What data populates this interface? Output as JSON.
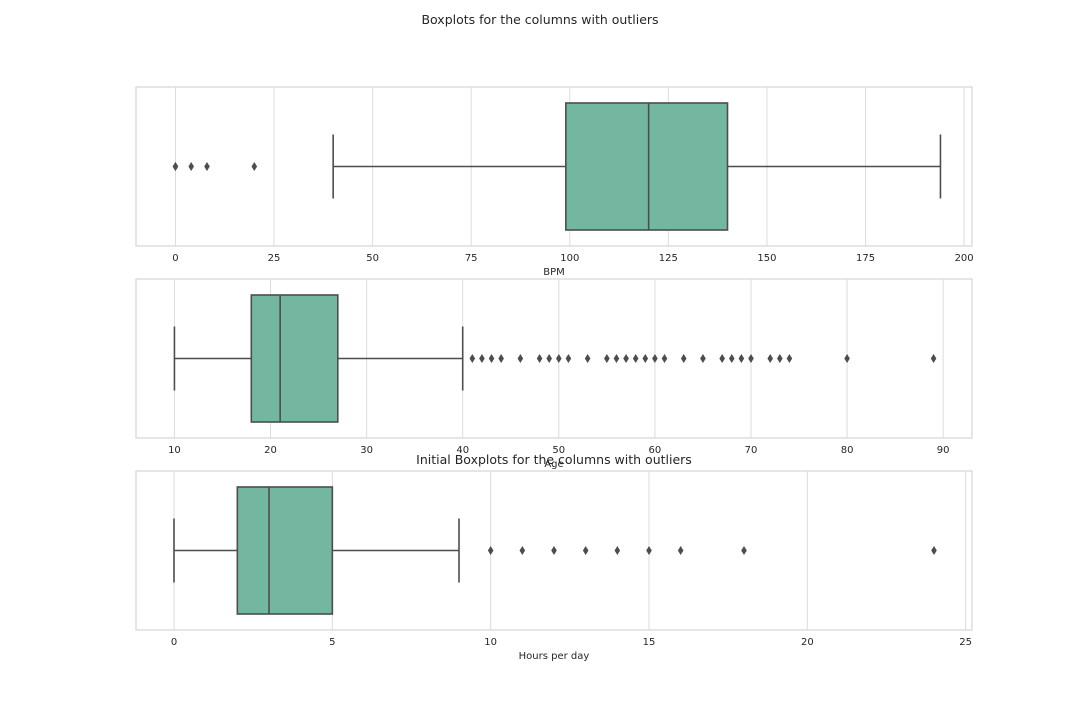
{
  "figure": {
    "title": "Boxplots for the columns with outliers",
    "box_color": "#74b7a1",
    "line_color": "#4d4d4d"
  },
  "chart_data": [
    {
      "type": "box",
      "orientation": "horizontal",
      "title": "",
      "xlabel": "BPM",
      "xlim": [
        -10,
        202
      ],
      "xticks": [
        0,
        25,
        50,
        75,
        100,
        125,
        150,
        175,
        200
      ],
      "grid": true,
      "whisker_low": 40,
      "q1": 99,
      "median": 120,
      "q3": 140,
      "whisker_high": 194,
      "outliers": [
        0,
        0,
        4,
        8,
        20
      ]
    },
    {
      "type": "box",
      "orientation": "horizontal",
      "title": "",
      "xlabel": "Age",
      "xlim": [
        6,
        93
      ],
      "xticks": [
        10,
        20,
        30,
        40,
        50,
        60,
        70,
        80,
        90
      ],
      "grid": true,
      "whisker_low": 10,
      "q1": 18,
      "median": 21,
      "q3": 27,
      "whisker_high": 40,
      "outliers": [
        41,
        42,
        43,
        44,
        46,
        48,
        49,
        50,
        51,
        53,
        55,
        56,
        57,
        58,
        59,
        60,
        61,
        63,
        65,
        67,
        68,
        69,
        70,
        72,
        73,
        74,
        80,
        89
      ]
    },
    {
      "type": "box",
      "orientation": "horizontal",
      "title": "Initial Boxplots for the columns with outliers",
      "xlabel": "Hours per day",
      "xlim": [
        -1.2,
        25.2
      ],
      "xticks": [
        0,
        5,
        10,
        15,
        20,
        25
      ],
      "grid": true,
      "whisker_low": 0,
      "q1": 2,
      "median": 3,
      "q3": 5,
      "whisker_high": 9,
      "outliers": [
        10,
        11,
        12,
        13,
        14,
        15,
        16,
        18,
        24
      ]
    }
  ]
}
